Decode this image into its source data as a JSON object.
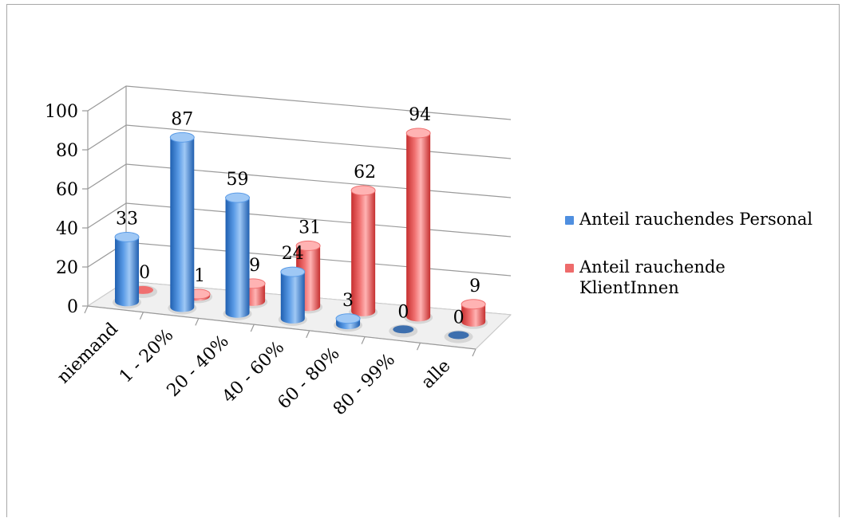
{
  "colors": {
    "series1_light": "#9fc8f5",
    "series1_mid": "#5a9be6",
    "series1_dark": "#1f5fb0",
    "series2_light": "#ffb3b3",
    "series2_mid": "#f07070",
    "series2_dark": "#c62f2f",
    "grid": "#9a9a9a"
  },
  "legend": {
    "item1": "Anteil rauchendes Personal",
    "item2_line1": "Anteil rauchende",
    "item2_line2": "KlientInnen"
  },
  "chart_data": {
    "type": "bar",
    "style": "3d-cylinder",
    "categories": [
      "niemand",
      "1 - 20%",
      "20 - 40%",
      "40 - 60%",
      "60 - 80%",
      "80 - 99%",
      "alle"
    ],
    "series": [
      {
        "name": "Anteil rauchendes Personal",
        "values": [
          33,
          87,
          59,
          24,
          3,
          0,
          0
        ]
      },
      {
        "name": "Anteil rauchende KlientInnen",
        "values": [
          0,
          1,
          9,
          31,
          62,
          94,
          9
        ]
      }
    ],
    "ylim": [
      0,
      100
    ],
    "yticks": [
      0,
      20,
      40,
      60,
      80,
      100
    ],
    "grid": true,
    "legend_position": "right"
  }
}
